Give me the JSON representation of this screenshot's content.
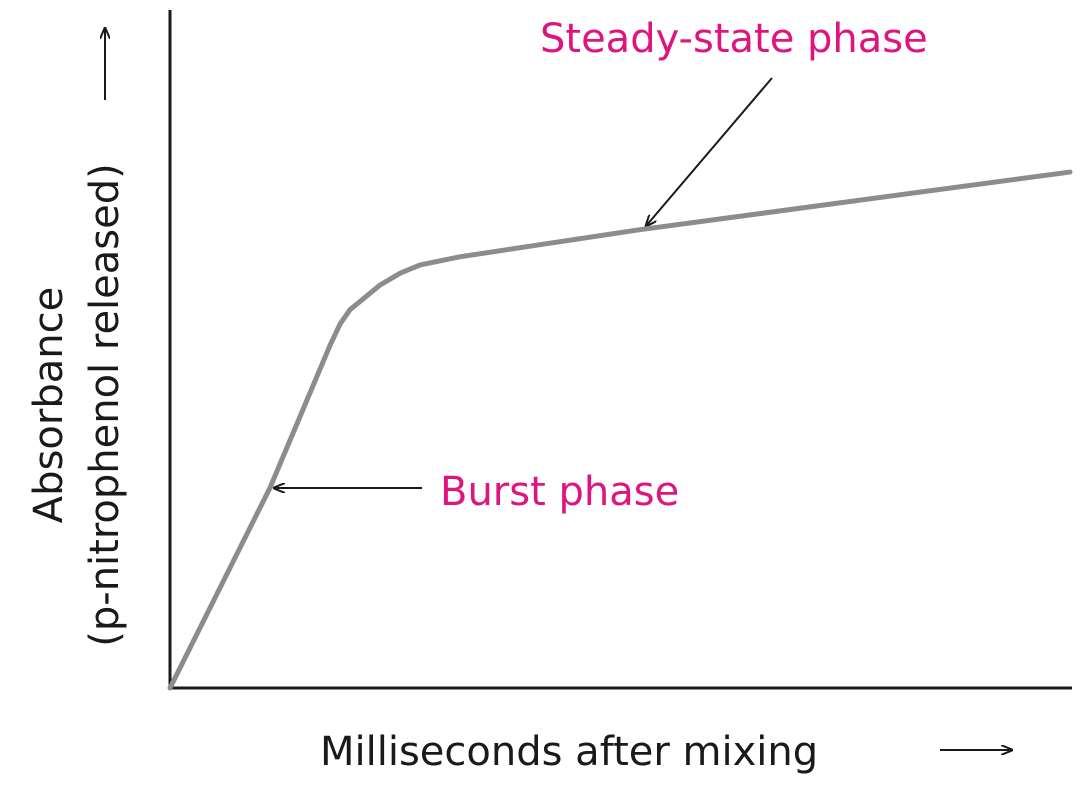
{
  "chart_data": {
    "type": "line",
    "xlabel": "Milliseconds after mixing",
    "ylabel": [
      "Absorbance",
      "(p-nitrophenol released)"
    ],
    "xlim": [
      0,
      100
    ],
    "ylim": [
      0,
      100
    ],
    "series": [
      {
        "color": "#8c8c8c",
        "x": [
          0,
          11.1,
          17.8,
          18.9,
          20,
          23.3,
          25.6,
          27.8,
          32.2,
          52.2,
          100
        ],
        "values": [
          0,
          29.5,
          50.6,
          53.7,
          55.8,
          59.4,
          61.2,
          62.4,
          63.6,
          67.6,
          76.1
        ]
      }
    ],
    "annotations": [
      {
        "text": "Steady-state phase",
        "color": "#e0147f"
      },
      {
        "text": "Burst phase",
        "color": "#e0147f"
      }
    ]
  }
}
